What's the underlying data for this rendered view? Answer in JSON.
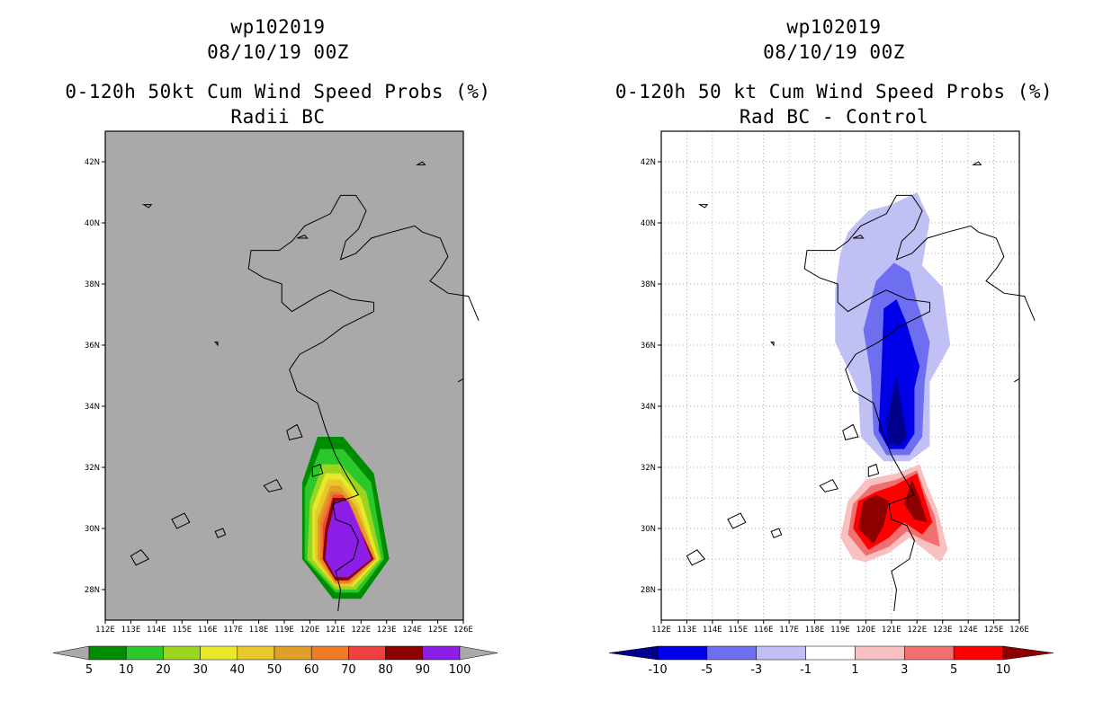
{
  "chart_data": [
    {
      "type": "map-contour",
      "title_line1": "wp102019",
      "title_line2": "08/10/19 00Z",
      "title_line3": "0-120h 50kt Cum Wind Speed Probs (%)",
      "subtitle": "Radii BC",
      "background": "#a9a9a9",
      "xlim": [
        112,
        126
      ],
      "ylim": [
        27,
        43
      ],
      "x_ticks": [
        "112E",
        "113E",
        "114E",
        "115E",
        "116E",
        "117E",
        "118E",
        "119E",
        "120E",
        "121E",
        "122E",
        "123E",
        "124E",
        "125E",
        "126E"
      ],
      "y_ticks": [
        "28N",
        "30N",
        "32N",
        "34N",
        "36N",
        "38N",
        "40N",
        "42N"
      ],
      "colorbar_labels": [
        "5",
        "10",
        "20",
        "30",
        "40",
        "50",
        "60",
        "70",
        "80",
        "90",
        "100"
      ],
      "levels": [
        {
          "min": 5,
          "max": 10,
          "color": "#008c00"
        },
        {
          "min": 10,
          "max": 20,
          "color": "#2ac82a"
        },
        {
          "min": 20,
          "max": 30,
          "color": "#9bd51f"
        },
        {
          "min": 30,
          "max": 40,
          "color": "#e8e82a"
        },
        {
          "min": 40,
          "max": 50,
          "color": "#e8c82a"
        },
        {
          "min": 50,
          "max": 60,
          "color": "#e0a028"
        },
        {
          "min": 60,
          "max": 70,
          "color": "#ee7c28"
        },
        {
          "min": 70,
          "max": 80,
          "color": "#f04040"
        },
        {
          "min": 80,
          "max": 90,
          "color": "#8c0000"
        },
        {
          "min": 90,
          "max": 100,
          "color": "#8c1ee8"
        }
      ],
      "region": {
        "lon_range": [
          119.8,
          123.1
        ],
        "lat_range": [
          27.6,
          33.0
        ],
        "core_lon": [
          120.6,
          122.8
        ],
        "core_lat": [
          28.3,
          31.0
        ]
      }
    },
    {
      "type": "map-contour",
      "title_line1": "wp102019",
      "title_line2": "08/10/19 00Z",
      "title_line3": "0-120h 50 kt Cum Wind Speed Probs (%)",
      "subtitle": "Rad BC - Control",
      "background": "#ffffff",
      "xlim": [
        112,
        126
      ],
      "ylim": [
        27,
        43
      ],
      "x_ticks": [
        "112E",
        "113E",
        "114E",
        "115E",
        "116E",
        "117E",
        "118E",
        "119E",
        "120E",
        "121E",
        "122E",
        "123E",
        "124E",
        "125E",
        "126E"
      ],
      "y_ticks": [
        "28N",
        "30N",
        "32N",
        "34N",
        "36N",
        "38N",
        "40N",
        "42N"
      ],
      "colorbar_labels": [
        "-10",
        "-5",
        "-3",
        "-1",
        "1",
        "3",
        "5",
        "10"
      ],
      "levels": [
        {
          "min": -99,
          "max": -10,
          "color": "#00008c"
        },
        {
          "min": -10,
          "max": -5,
          "color": "#0000e8"
        },
        {
          "min": -5,
          "max": -3,
          "color": "#6e6ef0"
        },
        {
          "min": -3,
          "max": -1,
          "color": "#c0c0f5"
        },
        {
          "min": -1,
          "max": 1,
          "color": "#ffffff"
        },
        {
          "min": 1,
          "max": 3,
          "color": "#f8c0c0"
        },
        {
          "min": 3,
          "max": 5,
          "color": "#f07070"
        },
        {
          "min": 5,
          "max": 10,
          "color": "#ff0000"
        },
        {
          "min": 10,
          "max": 99,
          "color": "#8c0000"
        }
      ]
    }
  ]
}
